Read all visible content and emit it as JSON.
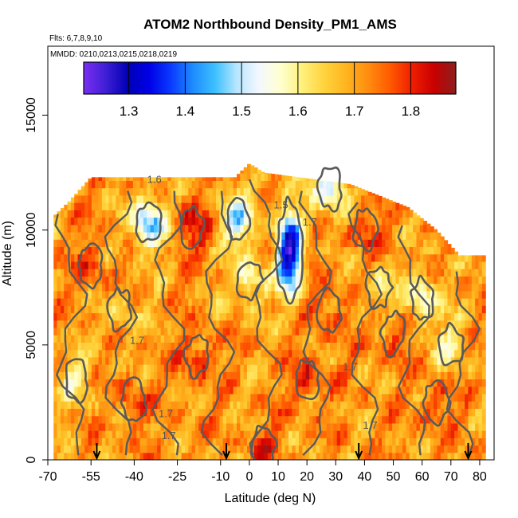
{
  "chart_data": {
    "type": "heatmap",
    "title": "ATOM2 Northbound Density_PM1_AMS",
    "subtitle_flights": "Flts: 6,7,8,9,10",
    "subtitle_dates": "MMDD: 0210,0213,0215,0218,0219",
    "xlabel": "Latitude (deg N)",
    "ylabel": "Altitude (m)",
    "xlim": [
      -70,
      85
    ],
    "ylim": [
      0,
      18000
    ],
    "x_ticks": [
      -70,
      -55,
      -40,
      -25,
      -10,
      0,
      10,
      20,
      30,
      40,
      50,
      60,
      70,
      80
    ],
    "x_tick_labels": [
      "-70",
      "-55",
      "-40",
      "-25",
      "-10",
      "0",
      "10",
      "20",
      "30",
      "40",
      "50",
      "60",
      "70",
      "80"
    ],
    "y_ticks": [
      0,
      5000,
      10000,
      15000
    ],
    "y_tick_labels": [
      "0",
      "5000",
      "10000",
      "15000"
    ],
    "colorbar": {
      "range": [
        1.22,
        1.88
      ],
      "ticks": [
        1.3,
        1.4,
        1.5,
        1.6,
        1.7,
        1.8
      ],
      "tick_labels": [
        "1.3",
        "1.4",
        "1.5",
        "1.6",
        "1.7",
        "1.8"
      ],
      "colors": [
        "#7b2ff2",
        "#3f1fd6",
        "#0000b5",
        "#0000e6",
        "#0a3cff",
        "#1e8cff",
        "#3cc0ff",
        "#b8e6ff",
        "#f4f8ff",
        "#ffffd0",
        "#fff07a",
        "#ffd33c",
        "#ffb41e",
        "#ff8c0f",
        "#ff5a00",
        "#f01e00",
        "#c80000",
        "#8c1e1e"
      ]
    },
    "contour_labels": [
      {
        "value": "1.6",
        "lat": -33,
        "alt": 12050
      },
      {
        "value": "1.5",
        "lat": 11,
        "alt": 10950
      },
      {
        "value": "1.7",
        "lat": 21,
        "alt": 10200
      },
      {
        "value": "1.7",
        "lat": -39,
        "alt": 5050
      },
      {
        "value": "1.7",
        "lat": 35,
        "alt": 3900
      },
      {
        "value": "1.7",
        "lat": -29,
        "alt": 1850
      },
      {
        "value": "1.7",
        "lat": 42,
        "alt": 1350
      },
      {
        "value": "1.7",
        "lat": -28,
        "alt": 900
      }
    ],
    "flight_markers_lat": [
      -53,
      -8,
      38,
      76
    ],
    "data_extent": {
      "lat_min": -68,
      "lat_max": 82,
      "alt_top_profile": [
        {
          "lat": -68,
          "alt": 10600
        },
        {
          "lat": -63,
          "alt": 11200
        },
        {
          "lat": -55,
          "alt": 12300
        },
        {
          "lat": -5,
          "alt": 12300
        },
        {
          "lat": 0,
          "alt": 12900
        },
        {
          "lat": 5,
          "alt": 12500
        },
        {
          "lat": 35,
          "alt": 12000
        },
        {
          "lat": 55,
          "alt": 11000
        },
        {
          "lat": 65,
          "alt": 10000
        },
        {
          "lat": 73,
          "alt": 8900
        },
        {
          "lat": 82,
          "alt": 8900
        }
      ]
    },
    "features": [
      {
        "kind": "low",
        "lat": 14,
        "alt": 9000,
        "level": 1.27
      },
      {
        "kind": "low",
        "lat": -4,
        "alt": 10500,
        "level": 1.5
      },
      {
        "kind": "low",
        "lat": -35,
        "alt": 10300,
        "level": 1.45
      },
      {
        "kind": "low",
        "lat": 60,
        "alt": 7000,
        "level": 1.55
      },
      {
        "kind": "low",
        "lat": 0,
        "alt": 7800,
        "level": 1.57
      },
      {
        "kind": "low",
        "lat": 28,
        "alt": 11800,
        "level": 1.5
      },
      {
        "kind": "high",
        "lat": -18,
        "alt": 4500,
        "level": 1.8
      },
      {
        "kind": "high",
        "lat": -55,
        "alt": 8500,
        "level": 1.78
      },
      {
        "kind": "high",
        "lat": -20,
        "alt": 10100,
        "level": 1.82
      },
      {
        "kind": "high",
        "lat": 40,
        "alt": 10000,
        "level": 1.79
      },
      {
        "kind": "high",
        "lat": 20,
        "alt": 3500,
        "level": 1.8
      },
      {
        "kind": "high",
        "lat": 50,
        "alt": 5500,
        "level": 1.78
      },
      {
        "kind": "high",
        "lat": -40,
        "alt": 2500,
        "level": 1.78
      },
      {
        "kind": "high",
        "lat": 5,
        "alt": 600,
        "level": 1.77
      },
      {
        "kind": "high",
        "lat": 65,
        "alt": 2500,
        "level": 1.78
      },
      {
        "kind": "high",
        "lat": 28,
        "alt": 6500,
        "level": 1.78
      },
      {
        "kind": "low",
        "lat": 70,
        "alt": 5000,
        "level": 1.6
      },
      {
        "kind": "low",
        "lat": -60,
        "alt": 3500,
        "level": 1.62
      },
      {
        "kind": "low",
        "lat": -45,
        "alt": 6500,
        "level": 1.64
      },
      {
        "kind": "low",
        "lat": 45,
        "alt": 7500,
        "level": 1.62
      }
    ]
  }
}
